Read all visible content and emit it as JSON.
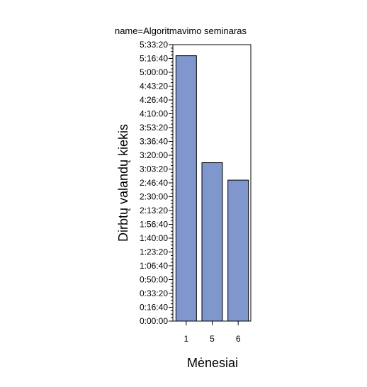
{
  "chart_data": {
    "type": "bar",
    "title": "name=Algoritmavimo seminaras",
    "xlabel": "Mėnesiai",
    "ylabel": "Dirbtų valandų kiekis",
    "categories": [
      "1",
      "5",
      "6"
    ],
    "values": [
      "5:20:00",
      "3:11:00",
      "2:50:00"
    ],
    "ylim": [
      "0:00:00",
      "5:33:20"
    ],
    "y_ticks": [
      "0:00:00",
      "0:16:40",
      "0:33:20",
      "0:50:00",
      "1:06:40",
      "1:23:20",
      "1:40:00",
      "1:56:40",
      "2:13:20",
      "2:30:00",
      "2:46:40",
      "3:03:20",
      "3:20:00",
      "3:36:40",
      "3:53:20",
      "4:10:00",
      "4:26:40",
      "4:43:20",
      "5:00:00",
      "5:16:40",
      "5:33:20"
    ],
    "bar_color": "#7f97cc",
    "grid": false,
    "legend": "none"
  }
}
